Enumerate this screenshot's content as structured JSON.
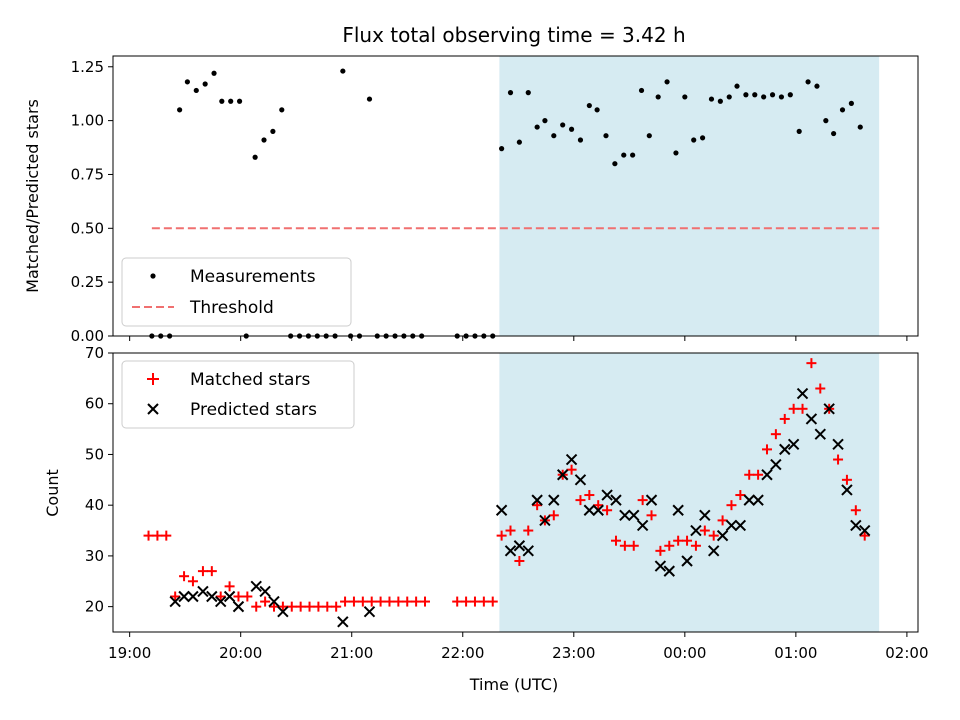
{
  "title": "Flux total observing time = 3.42 h",
  "x_label": "Time (UTC)",
  "x_ticks": [
    {
      "t": 19.0,
      "label": "19:00"
    },
    {
      "t": 20.0,
      "label": "20:00"
    },
    {
      "t": 21.0,
      "label": "21:00"
    },
    {
      "t": 22.0,
      "label": "22:00"
    },
    {
      "t": 23.0,
      "label": "23:00"
    },
    {
      "t": 24.0,
      "label": "00:00"
    },
    {
      "t": 25.0,
      "label": "01:00"
    },
    {
      "t": 26.0,
      "label": "02:00"
    }
  ],
  "x_range": [
    18.85,
    26.1
  ],
  "shaded_span": {
    "start": 22.33,
    "end": 25.75,
    "color": "#add8e6"
  },
  "colors": {
    "measure": "#000000",
    "threshold": "#f07070",
    "matched": "#ff0000",
    "predicted": "#000000"
  },
  "chart_data": [
    {
      "type": "scatter",
      "ylabel": "Matched/Predicted stars",
      "ylim": [
        0,
        1.3
      ],
      "y_ticks": [
        "0.00",
        "0.25",
        "0.50",
        "0.75",
        "1.00",
        "1.25"
      ],
      "legend_placement": "lower-left",
      "series": [
        {
          "name": "Measurements",
          "points": [
            [
              19.2,
              0
            ],
            [
              19.28,
              0
            ],
            [
              19.36,
              0
            ],
            [
              19.45,
              1.05
            ],
            [
              19.52,
              1.18
            ],
            [
              19.6,
              1.14
            ],
            [
              19.68,
              1.17
            ],
            [
              19.76,
              1.22
            ],
            [
              19.83,
              1.09
            ],
            [
              19.91,
              1.09
            ],
            [
              19.99,
              1.09
            ],
            [
              20.05,
              0
            ],
            [
              20.13,
              0.83
            ],
            [
              20.21,
              0.91
            ],
            [
              20.29,
              0.95
            ],
            [
              20.37,
              1.05
            ],
            [
              20.45,
              0
            ],
            [
              20.53,
              0
            ],
            [
              20.61,
              0
            ],
            [
              20.69,
              0
            ],
            [
              20.77,
              0
            ],
            [
              20.85,
              0
            ],
            [
              20.92,
              1.23
            ],
            [
              20.99,
              0
            ],
            [
              21.07,
              0
            ],
            [
              21.16,
              1.1
            ],
            [
              21.23,
              0
            ],
            [
              21.31,
              0
            ],
            [
              21.39,
              0
            ],
            [
              21.47,
              0
            ],
            [
              21.55,
              0
            ],
            [
              21.63,
              0
            ],
            [
              21.95,
              0
            ],
            [
              22.03,
              0
            ],
            [
              22.11,
              0
            ],
            [
              22.19,
              0
            ],
            [
              22.27,
              0
            ],
            [
              22.35,
              0.87
            ],
            [
              22.43,
              1.13
            ],
            [
              22.51,
              0.9
            ],
            [
              22.59,
              1.13
            ],
            [
              22.67,
              0.97
            ],
            [
              22.74,
              1.0
            ],
            [
              22.82,
              0.93
            ],
            [
              22.9,
              0.98
            ],
            [
              22.98,
              0.96
            ],
            [
              23.06,
              0.91
            ],
            [
              23.14,
              1.07
            ],
            [
              23.21,
              1.05
            ],
            [
              23.29,
              0.93
            ],
            [
              23.37,
              0.8
            ],
            [
              23.45,
              0.84
            ],
            [
              23.53,
              0.84
            ],
            [
              23.61,
              1.14
            ],
            [
              23.68,
              0.93
            ],
            [
              23.76,
              1.11
            ],
            [
              23.84,
              1.18
            ],
            [
              23.92,
              0.85
            ],
            [
              24.0,
              1.11
            ],
            [
              24.08,
              0.91
            ],
            [
              24.16,
              0.92
            ],
            [
              24.24,
              1.1
            ],
            [
              24.32,
              1.09
            ],
            [
              24.4,
              1.11
            ],
            [
              24.47,
              1.16
            ],
            [
              24.55,
              1.12
            ],
            [
              24.63,
              1.12
            ],
            [
              24.71,
              1.11
            ],
            [
              24.79,
              1.12
            ],
            [
              24.87,
              1.11
            ],
            [
              24.95,
              1.12
            ],
            [
              25.03,
              0.95
            ],
            [
              25.11,
              1.18
            ],
            [
              25.19,
              1.16
            ],
            [
              25.27,
              1.0
            ],
            [
              25.34,
              0.94
            ],
            [
              25.42,
              1.05
            ],
            [
              25.5,
              1.08
            ],
            [
              25.58,
              0.97
            ]
          ]
        },
        {
          "name": "Threshold",
          "x": [
            19.2,
            25.75
          ],
          "y": [
            0.5,
            0.5
          ],
          "style": "dashed"
        }
      ]
    },
    {
      "type": "scatter",
      "ylabel": "Count",
      "ylim": [
        15,
        70
      ],
      "y_ticks": [
        "20",
        "30",
        "40",
        "50",
        "60",
        "70"
      ],
      "legend_placement": "upper-left",
      "series": [
        {
          "name": "Matched stars",
          "marker": "plus",
          "points": [
            [
              19.17,
              34
            ],
            [
              19.25,
              34
            ],
            [
              19.33,
              34
            ],
            [
              19.41,
              22
            ],
            [
              19.49,
              26
            ],
            [
              19.57,
              25
            ],
            [
              19.66,
              27
            ],
            [
              19.74,
              27
            ],
            [
              19.82,
              22
            ],
            [
              19.9,
              24
            ],
            [
              19.98,
              22
            ],
            [
              20.06,
              22
            ],
            [
              20.14,
              20
            ],
            [
              20.22,
              21
            ],
            [
              20.3,
              20
            ],
            [
              20.38,
              20
            ],
            [
              20.46,
              20
            ],
            [
              20.54,
              20
            ],
            [
              20.62,
              20
            ],
            [
              20.7,
              20
            ],
            [
              20.78,
              20
            ],
            [
              20.86,
              20
            ],
            [
              20.94,
              21
            ],
            [
              21.02,
              21
            ],
            [
              21.1,
              21
            ],
            [
              21.18,
              21
            ],
            [
              21.26,
              21
            ],
            [
              21.34,
              21
            ],
            [
              21.42,
              21
            ],
            [
              21.5,
              21
            ],
            [
              21.58,
              21
            ],
            [
              21.66,
              21
            ],
            [
              21.95,
              21
            ],
            [
              22.03,
              21
            ],
            [
              22.11,
              21
            ],
            [
              22.19,
              21
            ],
            [
              22.27,
              21
            ],
            [
              22.35,
              34
            ],
            [
              22.43,
              35
            ],
            [
              22.51,
              29
            ],
            [
              22.59,
              35
            ],
            [
              22.67,
              40
            ],
            [
              22.74,
              37
            ],
            [
              22.82,
              38
            ],
            [
              22.9,
              46
            ],
            [
              22.98,
              47
            ],
            [
              23.06,
              41
            ],
            [
              23.14,
              42
            ],
            [
              23.22,
              40
            ],
            [
              23.3,
              39
            ],
            [
              23.38,
              33
            ],
            [
              23.46,
              32
            ],
            [
              23.54,
              32
            ],
            [
              23.62,
              41
            ],
            [
              23.7,
              38
            ],
            [
              23.78,
              31
            ],
            [
              23.86,
              32
            ],
            [
              23.94,
              33
            ],
            [
              24.02,
              33
            ],
            [
              24.1,
              32
            ],
            [
              24.18,
              35
            ],
            [
              24.26,
              34
            ],
            [
              24.34,
              37
            ],
            [
              24.42,
              40
            ],
            [
              24.5,
              42
            ],
            [
              24.58,
              46
            ],
            [
              24.66,
              46
            ],
            [
              24.74,
              51
            ],
            [
              24.82,
              54
            ],
            [
              24.9,
              57
            ],
            [
              24.98,
              59
            ],
            [
              25.06,
              59
            ],
            [
              25.14,
              68
            ],
            [
              25.22,
              63
            ],
            [
              25.3,
              59
            ],
            [
              25.38,
              49
            ],
            [
              25.46,
              45
            ],
            [
              25.54,
              39
            ],
            [
              25.62,
              34
            ]
          ]
        },
        {
          "name": "Predicted stars",
          "marker": "x",
          "points": [
            [
              19.41,
              21
            ],
            [
              19.49,
              22
            ],
            [
              19.57,
              22
            ],
            [
              19.66,
              23
            ],
            [
              19.74,
              22
            ],
            [
              19.82,
              21
            ],
            [
              19.9,
              22
            ],
            [
              19.98,
              20
            ],
            [
              20.14,
              24
            ],
            [
              20.22,
              23
            ],
            [
              20.3,
              21
            ],
            [
              20.38,
              19
            ],
            [
              20.92,
              17
            ],
            [
              21.16,
              19
            ],
            [
              22.35,
              39
            ],
            [
              22.43,
              31
            ],
            [
              22.51,
              32
            ],
            [
              22.59,
              31
            ],
            [
              22.67,
              41
            ],
            [
              22.74,
              37
            ],
            [
              22.82,
              41
            ],
            [
              22.9,
              46
            ],
            [
              22.98,
              49
            ],
            [
              23.06,
              45
            ],
            [
              23.14,
              39
            ],
            [
              23.22,
              39
            ],
            [
              23.3,
              42
            ],
            [
              23.38,
              41
            ],
            [
              23.46,
              38
            ],
            [
              23.54,
              38
            ],
            [
              23.62,
              36
            ],
            [
              23.7,
              41
            ],
            [
              23.78,
              28
            ],
            [
              23.86,
              27
            ],
            [
              23.94,
              39
            ],
            [
              24.02,
              29
            ],
            [
              24.1,
              35
            ],
            [
              24.18,
              38
            ],
            [
              24.26,
              31
            ],
            [
              24.34,
              34
            ],
            [
              24.42,
              36
            ],
            [
              24.5,
              36
            ],
            [
              24.58,
              41
            ],
            [
              24.66,
              41
            ],
            [
              24.74,
              46
            ],
            [
              24.82,
              48
            ],
            [
              24.9,
              51
            ],
            [
              24.98,
              52
            ],
            [
              25.06,
              62
            ],
            [
              25.14,
              57
            ],
            [
              25.22,
              54
            ],
            [
              25.3,
              59
            ],
            [
              25.38,
              52
            ],
            [
              25.46,
              43
            ],
            [
              25.54,
              36
            ],
            [
              25.62,
              35
            ]
          ]
        }
      ]
    }
  ]
}
